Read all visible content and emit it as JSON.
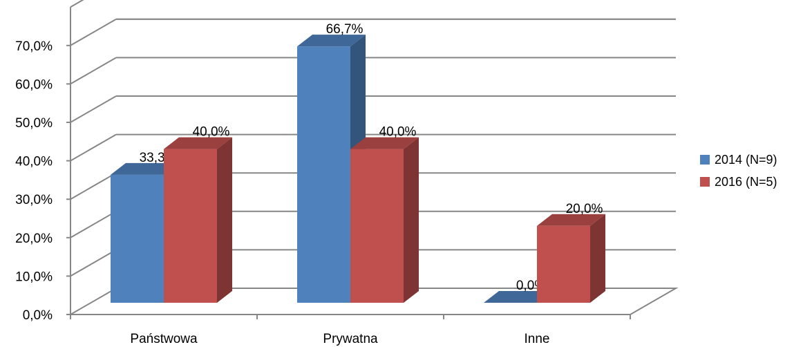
{
  "chart_data": {
    "type": "bar",
    "categories": [
      "Państwowa",
      "Prywatna",
      "Inne"
    ],
    "series": [
      {
        "name": "2014 (N=9)",
        "values": [
          33.3,
          66.7,
          0.0
        ],
        "labels": [
          "33,3%",
          "66,7%",
          "0,0%"
        ],
        "color": "#4F81BD"
      },
      {
        "name": "2016 (N=5)",
        "values": [
          40.0,
          40.0,
          20.0
        ],
        "labels": [
          "40,0%",
          "40,0%",
          "20,0%"
        ],
        "color": "#C0504D"
      }
    ],
    "ylim": [
      0,
      70
    ],
    "yticks": [
      "0,0%",
      "10,0%",
      "20,0%",
      "30,0%",
      "40,0%",
      "50,0%",
      "60,0%",
      "70,0%"
    ],
    "grid": true,
    "style": "3d-column",
    "legend_position": "right"
  }
}
